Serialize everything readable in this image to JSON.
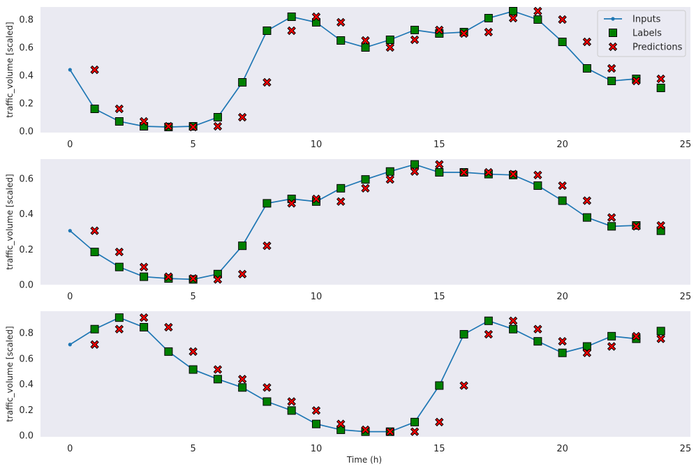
{
  "figure": {
    "xlabel": "Time (h)"
  },
  "colors": {
    "background": "#eaeaf2",
    "inputs": "#1f77b4",
    "labels": "#008000",
    "predictions": "#ff0000",
    "marker_edge": "#000000",
    "text": "#262626"
  },
  "legend": {
    "placement": "top-right",
    "entries": [
      {
        "name": "Inputs",
        "marker": "line-dot"
      },
      {
        "name": "Labels",
        "marker": "square"
      },
      {
        "name": "Predictions",
        "marker": "x"
      }
    ]
  },
  "chart_data": [
    {
      "type": "line",
      "title": "",
      "ylabel": "traffic_volume [scaled]",
      "xlim": [
        -1.2,
        25.2
      ],
      "ylim": [
        -0.01,
        0.89
      ],
      "xticks": [
        0,
        5,
        10,
        15,
        20,
        25
      ],
      "yticks": [
        0.0,
        0.2,
        0.4,
        0.6,
        0.8
      ],
      "grid": false,
      "show_legend": true,
      "series": [
        {
          "name": "Inputs",
          "x": [
            0,
            1,
            2,
            3,
            4,
            5,
            6,
            7,
            8,
            9,
            10,
            11,
            12,
            13,
            14,
            15,
            16,
            17,
            18,
            19,
            20,
            21,
            22,
            23
          ],
          "values": [
            0.44,
            0.16,
            0.07,
            0.035,
            0.03,
            0.035,
            0.1,
            0.35,
            0.72,
            0.82,
            0.78,
            0.65,
            0.6,
            0.655,
            0.725,
            0.7,
            0.71,
            0.81,
            0.86,
            0.8,
            0.64,
            0.45,
            0.36,
            0.375
          ]
        },
        {
          "name": "Labels",
          "x": [
            1,
            2,
            3,
            4,
            5,
            6,
            7,
            8,
            9,
            10,
            11,
            12,
            13,
            14,
            15,
            16,
            17,
            18,
            19,
            20,
            21,
            22,
            23,
            24
          ],
          "values": [
            0.16,
            0.07,
            0.035,
            0.03,
            0.035,
            0.1,
            0.35,
            0.72,
            0.82,
            0.78,
            0.65,
            0.6,
            0.655,
            0.725,
            0.7,
            0.71,
            0.81,
            0.86,
            0.8,
            0.64,
            0.45,
            0.36,
            0.375,
            0.31
          ]
        },
        {
          "name": "Predictions",
          "x": [
            1,
            2,
            3,
            4,
            5,
            6,
            7,
            8,
            9,
            10,
            11,
            12,
            13,
            14,
            15,
            16,
            17,
            18,
            19,
            20,
            21,
            22,
            23,
            24
          ],
          "values": [
            0.44,
            0.16,
            0.07,
            0.035,
            0.03,
            0.035,
            0.1,
            0.35,
            0.72,
            0.82,
            0.78,
            0.65,
            0.6,
            0.655,
            0.725,
            0.7,
            0.71,
            0.81,
            0.86,
            0.8,
            0.64,
            0.45,
            0.36,
            0.375
          ]
        }
      ]
    },
    {
      "type": "line",
      "title": "",
      "ylabel": "traffic_volume [scaled]",
      "xlim": [
        -1.2,
        25.2
      ],
      "ylim": [
        0.0,
        0.71
      ],
      "xticks": [
        0,
        5,
        10,
        15,
        20,
        25
      ],
      "yticks": [
        0.0,
        0.2,
        0.4,
        0.6
      ],
      "grid": false,
      "show_legend": false,
      "series": [
        {
          "name": "Inputs",
          "x": [
            0,
            1,
            2,
            3,
            4,
            5,
            6,
            7,
            8,
            9,
            10,
            11,
            12,
            13,
            14,
            15,
            16,
            17,
            18,
            19,
            20,
            21,
            22,
            23
          ],
          "values": [
            0.305,
            0.185,
            0.1,
            0.045,
            0.035,
            0.03,
            0.06,
            0.22,
            0.46,
            0.485,
            0.47,
            0.545,
            0.595,
            0.64,
            0.68,
            0.635,
            0.635,
            0.625,
            0.62,
            0.56,
            0.475,
            0.38,
            0.33,
            0.335
          ]
        },
        {
          "name": "Labels",
          "x": [
            1,
            2,
            3,
            4,
            5,
            6,
            7,
            8,
            9,
            10,
            11,
            12,
            13,
            14,
            15,
            16,
            17,
            18,
            19,
            20,
            21,
            22,
            23,
            24
          ],
          "values": [
            0.185,
            0.1,
            0.045,
            0.035,
            0.03,
            0.06,
            0.22,
            0.46,
            0.485,
            0.47,
            0.545,
            0.595,
            0.64,
            0.68,
            0.635,
            0.635,
            0.625,
            0.62,
            0.56,
            0.475,
            0.38,
            0.33,
            0.335,
            0.305
          ]
        },
        {
          "name": "Predictions",
          "x": [
            1,
            2,
            3,
            4,
            5,
            6,
            7,
            8,
            9,
            10,
            11,
            12,
            13,
            14,
            15,
            16,
            17,
            18,
            19,
            20,
            21,
            22,
            23,
            24
          ],
          "values": [
            0.305,
            0.185,
            0.1,
            0.045,
            0.035,
            0.03,
            0.06,
            0.22,
            0.46,
            0.485,
            0.47,
            0.545,
            0.595,
            0.64,
            0.68,
            0.635,
            0.635,
            0.625,
            0.62,
            0.56,
            0.475,
            0.38,
            0.33,
            0.335
          ]
        }
      ]
    },
    {
      "type": "line",
      "title": "",
      "ylabel": "traffic_volume [scaled]",
      "xlim": [
        -1.2,
        25.2
      ],
      "ylim": [
        -0.01,
        0.97
      ],
      "xticks": [
        0,
        5,
        10,
        15,
        20,
        25
      ],
      "yticks": [
        0.0,
        0.2,
        0.4,
        0.6,
        0.8
      ],
      "grid": false,
      "show_legend": false,
      "series": [
        {
          "name": "Inputs",
          "x": [
            0,
            1,
            2,
            3,
            4,
            5,
            6,
            7,
            8,
            9,
            10,
            11,
            12,
            13,
            14,
            15,
            16,
            17,
            18,
            19,
            20,
            21,
            22,
            23
          ],
          "values": [
            0.71,
            0.83,
            0.92,
            0.845,
            0.655,
            0.515,
            0.44,
            0.375,
            0.265,
            0.195,
            0.09,
            0.045,
            0.03,
            0.03,
            0.105,
            0.39,
            0.79,
            0.895,
            0.83,
            0.735,
            0.645,
            0.695,
            0.775,
            0.755
          ]
        },
        {
          "name": "Labels",
          "x": [
            1,
            2,
            3,
            4,
            5,
            6,
            7,
            8,
            9,
            10,
            11,
            12,
            13,
            14,
            15,
            16,
            17,
            18,
            19,
            20,
            21,
            22,
            23,
            24
          ],
          "values": [
            0.83,
            0.92,
            0.845,
            0.655,
            0.515,
            0.44,
            0.375,
            0.265,
            0.195,
            0.09,
            0.045,
            0.03,
            0.03,
            0.105,
            0.39,
            0.79,
            0.895,
            0.83,
            0.735,
            0.645,
            0.695,
            0.775,
            0.755,
            0.815
          ]
        },
        {
          "name": "Predictions",
          "x": [
            1,
            2,
            3,
            4,
            5,
            6,
            7,
            8,
            9,
            10,
            11,
            12,
            13,
            14,
            15,
            16,
            17,
            18,
            19,
            20,
            21,
            22,
            23,
            24
          ],
          "values": [
            0.71,
            0.83,
            0.92,
            0.845,
            0.655,
            0.515,
            0.44,
            0.375,
            0.265,
            0.195,
            0.09,
            0.045,
            0.03,
            0.03,
            0.105,
            0.39,
            0.79,
            0.895,
            0.83,
            0.735,
            0.645,
            0.695,
            0.775,
            0.755
          ]
        }
      ]
    }
  ]
}
